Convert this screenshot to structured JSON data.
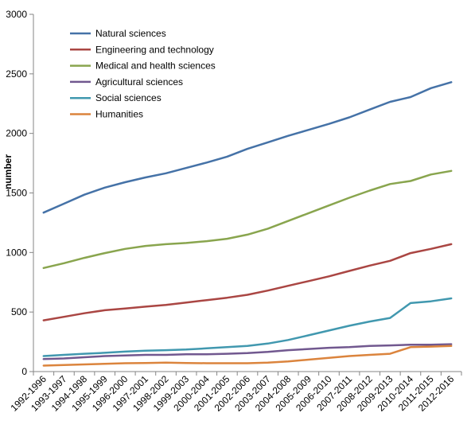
{
  "chart_data": {
    "type": "line",
    "title": "",
    "xlabel": "",
    "ylabel": "number",
    "ylim": [
      0,
      3000
    ],
    "yticks": [
      "0",
      "500",
      "1000",
      "1500",
      "2000",
      "2500",
      "3000"
    ],
    "grid": false,
    "legend_position": "top-left",
    "categories": [
      "1992-1996",
      "1993-1997",
      "1994-1998",
      "1995-1999",
      "1996-2000",
      "1997-2001",
      "1998-2002",
      "1999-2003",
      "2000-2004",
      "2001-2005",
      "2002-2006",
      "2003-2007",
      "2004-2008",
      "2005-2009",
      "2006-2010",
      "2007-2011",
      "2008-2012",
      "2009-2013",
      "2010-2014",
      "2011-2015",
      "2012-2016"
    ],
    "series": [
      {
        "name": "Natural sciences",
        "color": "#4572A7",
        "values": [
          1335,
          1410,
          1485,
          1545,
          1590,
          1630,
          1665,
          1710,
          1755,
          1805,
          1870,
          1925,
          1980,
          2030,
          2080,
          2135,
          2200,
          2265,
          2305,
          2380,
          2430
        ]
      },
      {
        "name": "Engineering and technology",
        "color": "#AA4643",
        "values": [
          430,
          460,
          490,
          515,
          530,
          545,
          560,
          580,
          600,
          620,
          645,
          680,
          720,
          760,
          800,
          845,
          890,
          930,
          995,
          1030,
          1070
        ]
      },
      {
        "name": "Medical and health sciences",
        "color": "#89A54E",
        "values": [
          870,
          910,
          955,
          995,
          1030,
          1055,
          1070,
          1080,
          1095,
          1115,
          1150,
          1200,
          1265,
          1330,
          1395,
          1460,
          1520,
          1575,
          1600,
          1655,
          1685
        ]
      },
      {
        "name": "Agricultural sciences",
        "color": "#71588F",
        "values": [
          105,
          110,
          120,
          130,
          135,
          140,
          140,
          145,
          145,
          150,
          155,
          165,
          180,
          190,
          200,
          205,
          215,
          220,
          225,
          225,
          230
        ]
      },
      {
        "name": "Social sciences",
        "color": "#4198AF",
        "values": [
          130,
          140,
          150,
          158,
          168,
          175,
          180,
          185,
          195,
          205,
          215,
          235,
          265,
          305,
          345,
          385,
          420,
          450,
          575,
          590,
          615
        ]
      },
      {
        "name": "Humanities",
        "color": "#DB843D",
        "values": [
          50,
          55,
          60,
          65,
          70,
          72,
          75,
          72,
          70,
          70,
          70,
          75,
          85,
          100,
          115,
          130,
          140,
          150,
          205,
          210,
          215
        ]
      }
    ]
  }
}
